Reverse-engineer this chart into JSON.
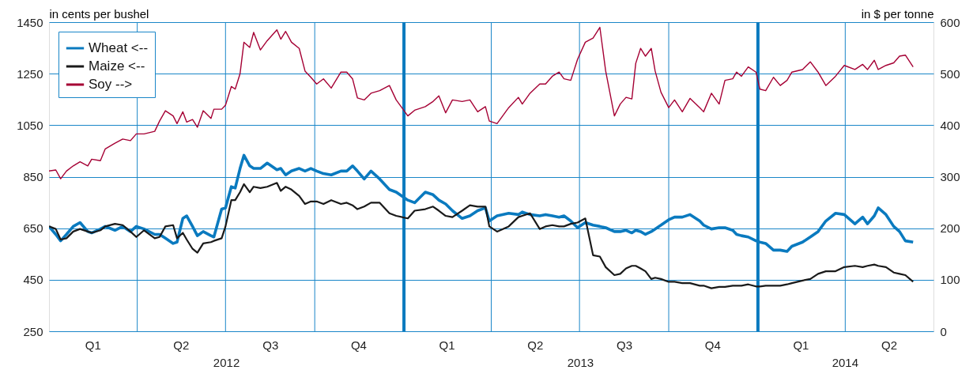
{
  "chart_data": {
    "type": "line",
    "ylabel": "in cents per bushel",
    "y2label": "in $ per tonne",
    "x": [
      "2012-01-01",
      "2012-01-08",
      "2012-01-13",
      "2012-01-19",
      "2012-01-26",
      "2012-02-02",
      "2012-02-10",
      "2012-02-14",
      "2012-02-23",
      "2012-02-28",
      "2012-03-09",
      "2012-03-17",
      "2012-03-25",
      "2012-03-31",
      "2012-04-08",
      "2012-04-19",
      "2012-04-24",
      "2012-04-30",
      "2012-05-08",
      "2012-05-12",
      "2012-05-18",
      "2012-05-22",
      "2012-05-28",
      "2012-06-02",
      "2012-06-08",
      "2012-06-16",
      "2012-06-19",
      "2012-06-27",
      "2012-07-01",
      "2012-07-07",
      "2012-07-11",
      "2012-07-16",
      "2012-07-20",
      "2012-07-26",
      "2012-07-30",
      "2012-08-06",
      "2012-08-13",
      "2012-08-23",
      "2012-08-27",
      "2012-09-01",
      "2012-09-07",
      "2012-09-15",
      "2012-09-21",
      "2012-09-27",
      "2012-10-03",
      "2012-10-10",
      "2012-10-18",
      "2012-10-28",
      "2012-11-03",
      "2012-11-09",
      "2012-11-14",
      "2012-11-21",
      "2012-11-28",
      "2012-12-07",
      "2012-12-17",
      "2012-12-24",
      "2013-01-05",
      "2013-01-12",
      "2013-01-23",
      "2013-01-31",
      "2013-02-06",
      "2013-02-13",
      "2013-02-20",
      "2013-03-02",
      "2013-03-10",
      "2013-03-18",
      "2013-03-26",
      "2013-03-30",
      "2013-04-07",
      "2013-04-19",
      "2013-04-29",
      "2013-05-03",
      "2013-05-11",
      "2013-05-21",
      "2013-05-27",
      "2013-06-03",
      "2013-06-10",
      "2013-06-15",
      "2013-06-22",
      "2013-06-29",
      "2013-07-07",
      "2013-07-15",
      "2013-07-22",
      "2013-07-28",
      "2013-08-06",
      "2013-08-12",
      "2013-08-18",
      "2013-08-24",
      "2013-08-28",
      "2013-09-02",
      "2013-09-07",
      "2013-09-13",
      "2013-09-17",
      "2013-09-23",
      "2013-10-01",
      "2013-10-07",
      "2013-10-15",
      "2013-10-23",
      "2013-11-02",
      "2013-11-06",
      "2013-11-14",
      "2013-11-22",
      "2013-11-28",
      "2013-12-06",
      "2013-12-10",
      "2013-12-15",
      "2013-12-22",
      "2013-12-30",
      "2014-01-03",
      "2014-01-09",
      "2014-01-17",
      "2014-01-24",
      "2014-01-31",
      "2014-02-05",
      "2014-02-16",
      "2014-02-24",
      "2014-03-04",
      "2014-03-12",
      "2014-03-22",
      "2014-03-31",
      "2014-04-11",
      "2014-04-19",
      "2014-04-24",
      "2014-05-01",
      "2014-05-05",
      "2014-05-13",
      "2014-05-21",
      "2014-05-27",
      "2014-06-02",
      "2014-06-10"
    ],
    "series": [
      {
        "name": "Wheat <--",
        "color": "#0a7abf",
        "values": [
          657,
          626,
          601,
          626,
          657,
          672,
          637,
          632,
          647,
          657,
          642,
          657,
          637,
          657,
          647,
          626,
          626,
          611,
          591,
          596,
          688,
          698,
          657,
          621,
          637,
          621,
          616,
          724,
          729,
          811,
          806,
          882,
          933,
          892,
          882,
          882,
          903,
          877,
          882,
          857,
          872,
          882,
          872,
          882,
          872,
          862,
          857,
          872,
          872,
          892,
          872,
          841,
          872,
          841,
          800,
          790,
          759,
          749,
          790,
          780,
          759,
          744,
          718,
          688,
          698,
          718,
          729,
          678,
          698,
          708,
          703,
          713,
          703,
          698,
          703,
          698,
          693,
          698,
          678,
          652,
          672,
          662,
          657,
          652,
          637,
          637,
          642,
          632,
          642,
          637,
          626,
          637,
          647,
          662,
          683,
          693,
          693,
          703,
          678,
          662,
          647,
          652,
          652,
          642,
          626,
          621,
          616,
          601,
          596,
          591,
          565,
          565,
          560,
          580,
          596,
          616,
          637,
          678,
          708,
          703,
          667,
          693,
          667,
          698,
          729,
          703,
          657,
          637,
          601,
          596
        ]
      },
      {
        "name": "Maize <--",
        "color": "#1a1a1a",
        "values": [
          657,
          647,
          606,
          611,
          637,
          647,
          637,
          632,
          642,
          657,
          667,
          662,
          637,
          616,
          642,
          611,
          616,
          657,
          662,
          611,
          632,
          606,
          570,
          555,
          591,
          596,
          601,
          611,
          657,
          759,
          759,
          790,
          821,
          790,
          811,
          806,
          811,
          826,
          795,
          811,
          800,
          775,
          744,
          754,
          754,
          744,
          759,
          744,
          749,
          739,
          724,
          734,
          749,
          749,
          708,
          698,
          688,
          718,
          724,
          734,
          718,
          698,
          693,
          718,
          739,
          734,
          734,
          657,
          637,
          657,
          693,
          698,
          708,
          647,
          657,
          662,
          657,
          657,
          667,
          672,
          688,
          545,
          540,
          499,
          468,
          473,
          494,
          504,
          504,
          494,
          483,
          453,
          458,
          453,
          442,
          442,
          437,
          437,
          427,
          427,
          417,
          422,
          422,
          427,
          427,
          427,
          432,
          424,
          424,
          427,
          427,
          427,
          432,
          437,
          447,
          453,
          473,
          483,
          483,
          499,
          504,
          499,
          504,
          509,
          504,
          499,
          478,
          473,
          468,
          442
        ]
      },
      {
        "name": "Soy -->",
        "color": "#a50034",
        "axis": "y2",
        "values": [
          311,
          313,
          296,
          311,
          321,
          329,
          321,
          334,
          331,
          354,
          365,
          373,
          370,
          383,
          383,
          388,
          408,
          428,
          418,
          403,
          426,
          406,
          411,
          396,
          428,
          413,
          431,
          431,
          439,
          475,
          470,
          500,
          561,
          551,
          580,
          546,
          564,
          585,
          567,
          582,
          561,
          549,
          505,
          493,
          480,
          490,
          472,
          503,
          503,
          490,
          453,
          449,
          462,
          467,
          477,
          449,
          418,
          429,
          436,
          446,
          457,
          424,
          449,
          446,
          449,
          426,
          436,
          408,
          403,
          434,
          454,
          441,
          462,
          480,
          480,
          495,
          503,
          490,
          487,
          528,
          561,
          569,
          590,
          505,
          418,
          441,
          454,
          451,
          520,
          549,
          534,
          549,
          505,
          464,
          434,
          449,
          426,
          452,
          434,
          426,
          462,
          441,
          487,
          490,
          503,
          495,
          513,
          503,
          470,
          467,
          493,
          477,
          487,
          503,
          508,
          523,
          503,
          477,
          495,
          516,
          508,
          518,
          508,
          526,
          508,
          516,
          521,
          534,
          536,
          513
        ]
      }
    ],
    "xlim": [
      "2012-01-01",
      "2014-07-01"
    ],
    "xticks": [
      {
        "value": "2012-02-15",
        "label": "Q1"
      },
      {
        "value": "2012-04-01",
        "label": null
      },
      {
        "value": "2012-05-16",
        "label": "Q2"
      },
      {
        "value": "2012-07-01",
        "label": null
      },
      {
        "value": "2012-08-16",
        "label": "Q3"
      },
      {
        "value": "2012-10-01",
        "label": null
      },
      {
        "value": "2012-11-15",
        "label": "Q4"
      },
      {
        "value": "2013-02-14",
        "label": "Q1"
      },
      {
        "value": "2013-04-01",
        "label": null
      },
      {
        "value": "2013-05-16",
        "label": "Q2"
      },
      {
        "value": "2013-07-01",
        "label": null
      },
      {
        "value": "2013-08-16",
        "label": "Q3"
      },
      {
        "value": "2013-10-01",
        "label": null
      },
      {
        "value": "2013-11-15",
        "label": "Q4"
      },
      {
        "value": "2014-02-14",
        "label": "Q1"
      },
      {
        "value": "2014-04-01",
        "label": null
      },
      {
        "value": "2014-05-16",
        "label": "Q2"
      }
    ],
    "ylim": [
      250,
      1450
    ],
    "yticks": [
      250,
      450,
      650,
      850,
      1050,
      1250,
      1450
    ],
    "y2lim": [
      0,
      600
    ],
    "y2ticks": [
      0,
      100,
      200,
      300,
      400,
      500,
      600
    ],
    "ref_lines": [
      {
        "axis": "x",
        "value": "2013-01-01",
        "color": "#0a7abf"
      },
      {
        "axis": "x",
        "value": "2014-01-01",
        "color": "#0a7abf"
      }
    ],
    "annotations": [
      "2012",
      "2013",
      "2014"
    ],
    "grid": true,
    "legend": "top left"
  }
}
